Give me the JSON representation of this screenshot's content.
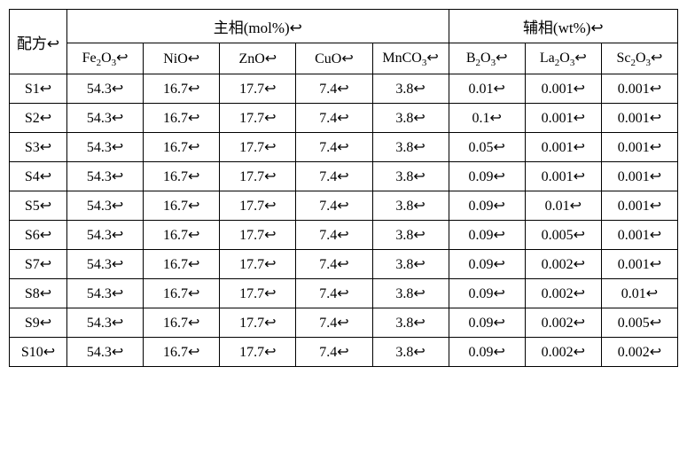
{
  "table": {
    "corner_label": "配方↩",
    "group_headers": [
      {
        "label": "主相(mol%)↩",
        "span": 5
      },
      {
        "label": "辅相(wt%)↩",
        "span": 3
      }
    ],
    "columns": [
      {
        "key": "Fe2O3",
        "label_html": "Fe<sub>2</sub>O<sub>3</sub>↩"
      },
      {
        "key": "NiO",
        "label_html": "NiO↩"
      },
      {
        "key": "ZnO",
        "label_html": "ZnO↩"
      },
      {
        "key": "CuO",
        "label_html": "CuO↩"
      },
      {
        "key": "MnCO3",
        "label_html": "MnCO<sub>3</sub>↩"
      },
      {
        "key": "B2O3",
        "label_html": "B<sub>2</sub>O<sub>3</sub>↩"
      },
      {
        "key": "La2O3",
        "label_html": "La<sub>2</sub>O<sub>3</sub>↩"
      },
      {
        "key": "Sc2O3",
        "label_html": "Sc<sub>2</sub>O<sub>3</sub>↩"
      }
    ],
    "rows": [
      {
        "name": "S1↩",
        "values": [
          "54.3↩",
          "16.7↩",
          "17.7↩",
          "7.4↩",
          "3.8↩",
          "0.01↩",
          "0.001↩",
          "0.001↩"
        ]
      },
      {
        "name": "S2↩",
        "values": [
          "54.3↩",
          "16.7↩",
          "17.7↩",
          "7.4↩",
          "3.8↩",
          "0.1↩",
          "0.001↩",
          "0.001↩"
        ]
      },
      {
        "name": "S3↩",
        "values": [
          "54.3↩",
          "16.7↩",
          "17.7↩",
          "7.4↩",
          "3.8↩",
          "0.05↩",
          "0.001↩",
          "0.001↩"
        ]
      },
      {
        "name": "S4↩",
        "values": [
          "54.3↩",
          "16.7↩",
          "17.7↩",
          "7.4↩",
          "3.8↩",
          "0.09↩",
          "0.001↩",
          "0.001↩"
        ]
      },
      {
        "name": "S5↩",
        "values": [
          "54.3↩",
          "16.7↩",
          "17.7↩",
          "7.4↩",
          "3.8↩",
          "0.09↩",
          "0.01↩",
          "0.001↩"
        ]
      },
      {
        "name": "S6↩",
        "values": [
          "54.3↩",
          "16.7↩",
          "17.7↩",
          "7.4↩",
          "3.8↩",
          "0.09↩",
          "0.005↩",
          "0.001↩"
        ]
      },
      {
        "name": "S7↩",
        "values": [
          "54.3↩",
          "16.7↩",
          "17.7↩",
          "7.4↩",
          "3.8↩",
          "0.09↩",
          "0.002↩",
          "0.001↩"
        ]
      },
      {
        "name": "S8↩",
        "values": [
          "54.3↩",
          "16.7↩",
          "17.7↩",
          "7.4↩",
          "3.8↩",
          "0.09↩",
          "0.002↩",
          "0.01↩"
        ]
      },
      {
        "name": "S9↩",
        "values": [
          "54.3↩",
          "16.7↩",
          "17.7↩",
          "7.4↩",
          "3.8↩",
          "0.09↩",
          "0.002↩",
          "0.005↩"
        ]
      },
      {
        "name": "S10↩",
        "values": [
          "54.3↩",
          "16.7↩",
          "17.7↩",
          "7.4↩",
          "3.8↩",
          "0.09↩",
          "0.002↩",
          "0.002↩"
        ]
      }
    ],
    "colors": {
      "border": "#000000",
      "background": "#ffffff",
      "text": "#000000"
    },
    "font": {
      "family": "Times New Roman",
      "size_pt": 12
    }
  }
}
